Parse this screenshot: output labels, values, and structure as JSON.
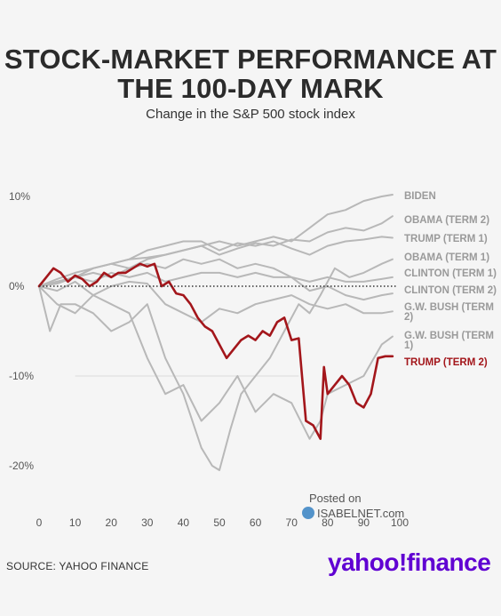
{
  "title": "STOCK-MARKET PERFORMANCE AT THE 100-DAY MARK",
  "subtitle": "Change in the S&P 500 stock index",
  "source": "SOURCE: YAHOO FINANCE",
  "brand": "yahoo!finance",
  "watermark": {
    "posted": "Posted on",
    "site": "ISABELNET.com"
  },
  "colors": {
    "highlight": "#a3161b",
    "others": "#b8b8b8",
    "zero": "#333333"
  },
  "chart_data": {
    "type": "line",
    "xlim": [
      0,
      100
    ],
    "ylim": [
      -25,
      12
    ],
    "x_ticks": [
      "0",
      "10",
      "20",
      "30",
      "40",
      "50",
      "60",
      "70",
      "80",
      "90",
      "100"
    ],
    "y_ticks": [
      {
        "value": 10,
        "label": "10%"
      },
      {
        "value": 0,
        "label": "0%"
      },
      {
        "value": -10,
        "label": "-10%"
      },
      {
        "value": -20,
        "label": "-20%"
      }
    ],
    "series": [
      {
        "name": "BIDEN",
        "highlight": false,
        "points": [
          [
            0,
            0
          ],
          [
            5,
            0.5
          ],
          [
            10,
            1
          ],
          [
            15,
            2
          ],
          [
            20,
            2.5
          ],
          [
            25,
            2
          ],
          [
            30,
            3
          ],
          [
            35,
            3.5
          ],
          [
            40,
            4
          ],
          [
            45,
            4.5
          ],
          [
            50,
            5
          ],
          [
            55,
            4.5
          ],
          [
            60,
            5
          ],
          [
            65,
            5.5
          ],
          [
            70,
            5
          ],
          [
            75,
            6.5
          ],
          [
            80,
            8
          ],
          [
            85,
            8.5
          ],
          [
            90,
            9.5
          ],
          [
            95,
            10
          ],
          [
            98,
            10.2
          ]
        ]
      },
      {
        "name": "OBAMA (TERM 2)",
        "highlight": false,
        "points": [
          [
            0,
            0
          ],
          [
            5,
            0.8
          ],
          [
            10,
            1.5
          ],
          [
            15,
            2
          ],
          [
            20,
            2.5
          ],
          [
            25,
            3
          ],
          [
            30,
            3.2
          ],
          [
            35,
            3.5
          ],
          [
            40,
            4
          ],
          [
            45,
            4.5
          ],
          [
            50,
            3.5
          ],
          [
            55,
            4.2
          ],
          [
            60,
            4.8
          ],
          [
            65,
            4.5
          ],
          [
            70,
            5.2
          ],
          [
            75,
            5
          ],
          [
            80,
            6
          ],
          [
            85,
            6.5
          ],
          [
            90,
            6.2
          ],
          [
            95,
            7
          ],
          [
            98,
            7.8
          ]
        ]
      },
      {
        "name": "TRUMP (TERM 1)",
        "highlight": false,
        "points": [
          [
            0,
            0
          ],
          [
            5,
            0.5
          ],
          [
            10,
            1
          ],
          [
            15,
            2
          ],
          [
            20,
            2.5
          ],
          [
            25,
            3
          ],
          [
            30,
            4
          ],
          [
            35,
            4.5
          ],
          [
            40,
            5
          ],
          [
            45,
            5
          ],
          [
            50,
            4
          ],
          [
            55,
            4.8
          ],
          [
            60,
            4.5
          ],
          [
            65,
            5
          ],
          [
            70,
            4.2
          ],
          [
            75,
            3.5
          ],
          [
            80,
            4.5
          ],
          [
            85,
            5
          ],
          [
            90,
            5.2
          ],
          [
            95,
            5.5
          ],
          [
            98,
            5.4
          ]
        ]
      },
      {
        "name": "OBAMA (TERM 1)",
        "highlight": false,
        "points": [
          [
            0,
            0
          ],
          [
            3,
            -5
          ],
          [
            6,
            -2
          ],
          [
            10,
            -2
          ],
          [
            15,
            -3
          ],
          [
            20,
            -5
          ],
          [
            25,
            -4
          ],
          [
            30,
            -2
          ],
          [
            35,
            -8
          ],
          [
            40,
            -12
          ],
          [
            45,
            -18
          ],
          [
            48,
            -20
          ],
          [
            50,
            -20.5
          ],
          [
            53,
            -16
          ],
          [
            56,
            -12
          ],
          [
            60,
            -10
          ],
          [
            64,
            -8
          ],
          [
            68,
            -5
          ],
          [
            72,
            -2
          ],
          [
            75,
            -3
          ],
          [
            78,
            -1
          ],
          [
            82,
            2
          ],
          [
            86,
            1
          ],
          [
            90,
            1.5
          ],
          [
            95,
            2.5
          ],
          [
            98,
            3
          ]
        ]
      },
      {
        "name": "CLINTON (TERM 1)",
        "highlight": false,
        "points": [
          [
            0,
            0
          ],
          [
            5,
            0.3
          ],
          [
            10,
            1
          ],
          [
            15,
            0.5
          ],
          [
            20,
            1.5
          ],
          [
            25,
            1
          ],
          [
            30,
            1.5
          ],
          [
            35,
            0.5
          ],
          [
            40,
            1
          ],
          [
            45,
            1.5
          ],
          [
            50,
            1.5
          ],
          [
            55,
            1
          ],
          [
            60,
            1.5
          ],
          [
            65,
            1
          ],
          [
            70,
            1
          ],
          [
            75,
            0.5
          ],
          [
            80,
            1
          ],
          [
            85,
            0.5
          ],
          [
            90,
            0.5
          ],
          [
            95,
            0.8
          ],
          [
            98,
            1
          ]
        ]
      },
      {
        "name": "CLINTON (TERM 2)",
        "highlight": false,
        "points": [
          [
            0,
            0
          ],
          [
            5,
            0.5
          ],
          [
            10,
            1
          ],
          [
            15,
            1.5
          ],
          [
            20,
            1
          ],
          [
            25,
            2
          ],
          [
            30,
            2.5
          ],
          [
            35,
            2
          ],
          [
            40,
            3
          ],
          [
            45,
            2.5
          ],
          [
            50,
            3
          ],
          [
            55,
            2
          ],
          [
            60,
            2.5
          ],
          [
            65,
            2
          ],
          [
            70,
            1
          ],
          [
            75,
            -0.5
          ],
          [
            80,
            0
          ],
          [
            85,
            -1
          ],
          [
            90,
            -1.5
          ],
          [
            95,
            -1
          ],
          [
            98,
            -0.8
          ]
        ]
      },
      {
        "name": "G.W. BUSH (TERM 2)",
        "highlight": false,
        "points": [
          [
            0,
            0
          ],
          [
            5,
            -0.5
          ],
          [
            10,
            0.5
          ],
          [
            15,
            -1
          ],
          [
            20,
            0
          ],
          [
            25,
            0.5
          ],
          [
            30,
            0.3
          ],
          [
            35,
            -2
          ],
          [
            40,
            -3
          ],
          [
            45,
            -4
          ],
          [
            50,
            -2.5
          ],
          [
            55,
            -3
          ],
          [
            60,
            -2
          ],
          [
            65,
            -1.5
          ],
          [
            70,
            -1
          ],
          [
            75,
            -2
          ],
          [
            80,
            -2.5
          ],
          [
            85,
            -2
          ],
          [
            90,
            -3
          ],
          [
            95,
            -3
          ],
          [
            98,
            -2.8
          ]
        ]
      },
      {
        "name": "G.W. BUSH (TERM 1)",
        "highlight": false,
        "points": [
          [
            0,
            0
          ],
          [
            5,
            -2
          ],
          [
            10,
            -3
          ],
          [
            15,
            -1
          ],
          [
            20,
            -2
          ],
          [
            25,
            -3
          ],
          [
            30,
            -8
          ],
          [
            35,
            -12
          ],
          [
            40,
            -11
          ],
          [
            45,
            -15
          ],
          [
            50,
            -13
          ],
          [
            55,
            -10
          ],
          [
            60,
            -14
          ],
          [
            65,
            -12
          ],
          [
            70,
            -13
          ],
          [
            75,
            -17
          ],
          [
            78,
            -15
          ],
          [
            80,
            -12
          ],
          [
            85,
            -11
          ],
          [
            90,
            -10
          ],
          [
            95,
            -6.5
          ],
          [
            98,
            -5.6
          ]
        ]
      },
      {
        "name": "TRUMP (TERM 2)",
        "highlight": true,
        "points": [
          [
            0,
            0
          ],
          [
            2,
            1
          ],
          [
            4,
            2
          ],
          [
            6,
            1.5
          ],
          [
            8,
            0.5
          ],
          [
            10,
            1.2
          ],
          [
            12,
            0.8
          ],
          [
            14,
            0
          ],
          [
            16,
            0.5
          ],
          [
            18,
            1.5
          ],
          [
            20,
            1
          ],
          [
            22,
            1.5
          ],
          [
            24,
            1.5
          ],
          [
            26,
            2
          ],
          [
            28,
            2.5
          ],
          [
            30,
            2.2
          ],
          [
            32,
            2.5
          ],
          [
            34,
            0
          ],
          [
            36,
            0.5
          ],
          [
            38,
            -0.8
          ],
          [
            40,
            -1
          ],
          [
            42,
            -2
          ],
          [
            44,
            -3.5
          ],
          [
            46,
            -4.5
          ],
          [
            48,
            -5
          ],
          [
            50,
            -6.5
          ],
          [
            52,
            -8
          ],
          [
            54,
            -7
          ],
          [
            56,
            -6
          ],
          [
            58,
            -5.5
          ],
          [
            60,
            -6
          ],
          [
            62,
            -5
          ],
          [
            64,
            -5.5
          ],
          [
            66,
            -4
          ],
          [
            68,
            -3.5
          ],
          [
            70,
            -6
          ],
          [
            72,
            -5.8
          ],
          [
            74,
            -15
          ],
          [
            76,
            -15.5
          ],
          [
            78,
            -17
          ],
          [
            79,
            -9
          ],
          [
            80,
            -12
          ],
          [
            82,
            -11
          ],
          [
            84,
            -10
          ],
          [
            86,
            -11
          ],
          [
            88,
            -13
          ],
          [
            90,
            -13.5
          ],
          [
            92,
            -12
          ],
          [
            94,
            -8
          ],
          [
            96,
            -7.8
          ],
          [
            98,
            -7.8
          ]
        ]
      }
    ]
  }
}
